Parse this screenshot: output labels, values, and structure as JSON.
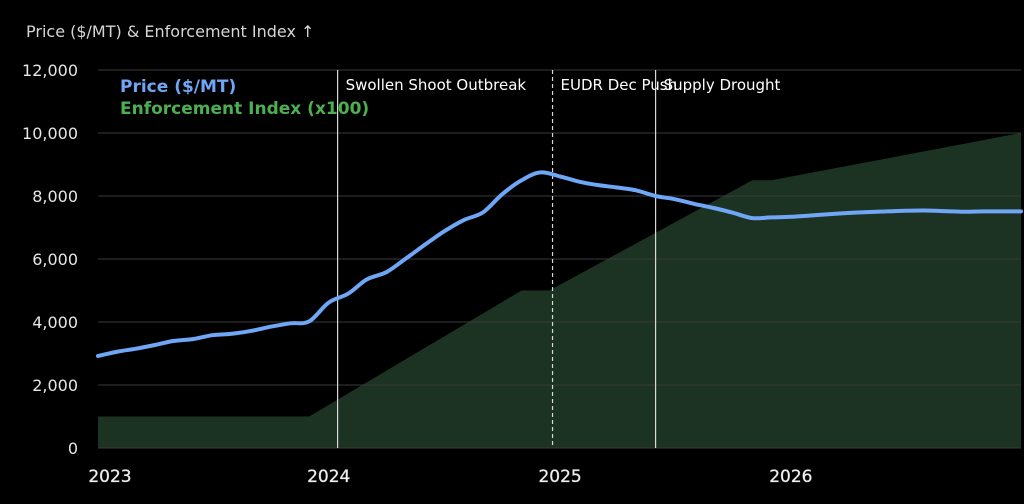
{
  "chart_data": {
    "type": "line",
    "ylabel": "Price ($/MT) & Enforcement Index ↑",
    "ylim": [
      0,
      12000
    ],
    "yticks": [
      "0",
      "2,000",
      "4,000",
      "6,000",
      "8,000",
      "10,000",
      "12,000"
    ],
    "ytick_values": [
      0,
      2000,
      4000,
      6000,
      8000,
      10000,
      12000
    ],
    "x_range": [
      "2023-01-01",
      "2026-12-31"
    ],
    "xticks": [
      {
        "date": "2023-01-01",
        "label": "2023"
      },
      {
        "date": "2024-01-01",
        "label": "2024"
      },
      {
        "date": "2025-01-01",
        "label": "2025"
      },
      {
        "date": "2026-01-01",
        "label": "2026"
      }
    ],
    "grid": true,
    "legend_position": "top-left",
    "series": [
      {
        "name": "Price ($/MT)",
        "type": "line",
        "color": "#6fa6f5",
        "points": [
          [
            "2023-01-01",
            2920
          ],
          [
            "2023-02-01",
            3060
          ],
          [
            "2023-03-01",
            3150
          ],
          [
            "2023-04-01",
            3270
          ],
          [
            "2023-05-01",
            3400
          ],
          [
            "2023-06-01",
            3460
          ],
          [
            "2023-07-01",
            3580
          ],
          [
            "2023-08-01",
            3630
          ],
          [
            "2023-09-01",
            3720
          ],
          [
            "2023-10-01",
            3850
          ],
          [
            "2023-11-01",
            3960
          ],
          [
            "2023-12-01",
            4020
          ],
          [
            "2024-01-01",
            4620
          ],
          [
            "2024-02-01",
            4900
          ],
          [
            "2024-03-01",
            5350
          ],
          [
            "2024-04-01",
            5580
          ],
          [
            "2024-05-01",
            6000
          ],
          [
            "2024-06-01",
            6450
          ],
          [
            "2024-07-01",
            6870
          ],
          [
            "2024-08-01",
            7230
          ],
          [
            "2024-09-01",
            7480
          ],
          [
            "2024-10-01",
            8050
          ],
          [
            "2024-11-01",
            8500
          ],
          [
            "2024-12-01",
            8750
          ],
          [
            "2025-01-01",
            8620
          ],
          [
            "2025-02-01",
            8450
          ],
          [
            "2025-03-01",
            8350
          ],
          [
            "2025-04-01",
            8270
          ],
          [
            "2025-05-01",
            8180
          ],
          [
            "2025-06-01",
            8000
          ],
          [
            "2025-07-01",
            7900
          ],
          [
            "2025-08-01",
            7750
          ],
          [
            "2025-09-01",
            7620
          ],
          [
            "2025-10-01",
            7470
          ],
          [
            "2025-11-01",
            7300
          ],
          [
            "2025-12-01",
            7320
          ],
          [
            "2026-01-01",
            7340
          ],
          [
            "2026-02-01",
            7380
          ],
          [
            "2026-03-01",
            7420
          ],
          [
            "2026-04-01",
            7460
          ],
          [
            "2026-05-01",
            7490
          ],
          [
            "2026-06-01",
            7510
          ],
          [
            "2026-07-01",
            7530
          ],
          [
            "2026-08-01",
            7540
          ],
          [
            "2026-09-01",
            7520
          ],
          [
            "2026-10-01",
            7500
          ],
          [
            "2026-11-01",
            7510
          ],
          [
            "2026-12-31",
            7510
          ]
        ]
      },
      {
        "name": "Enforcement Index (x100)",
        "type": "area",
        "color": "#4caf50",
        "fill": "#1c3323",
        "points": [
          [
            "2023-01-01",
            1000
          ],
          [
            "2023-12-01",
            1000
          ],
          [
            "2024-11-01",
            5000
          ],
          [
            "2024-12-15",
            5000
          ],
          [
            "2025-11-01",
            8500
          ],
          [
            "2025-12-01",
            8500
          ],
          [
            "2026-12-31",
            10000
          ]
        ]
      }
    ],
    "annotations": [
      {
        "date": "2024-01-15",
        "label": "Swollen Shoot Outbreak",
        "style": "solid"
      },
      {
        "date": "2024-12-20",
        "label": "EUDR Dec Push",
        "style": "dashed"
      },
      {
        "date": "2025-06-01",
        "label": "Supply Drought",
        "style": "solid"
      }
    ]
  }
}
